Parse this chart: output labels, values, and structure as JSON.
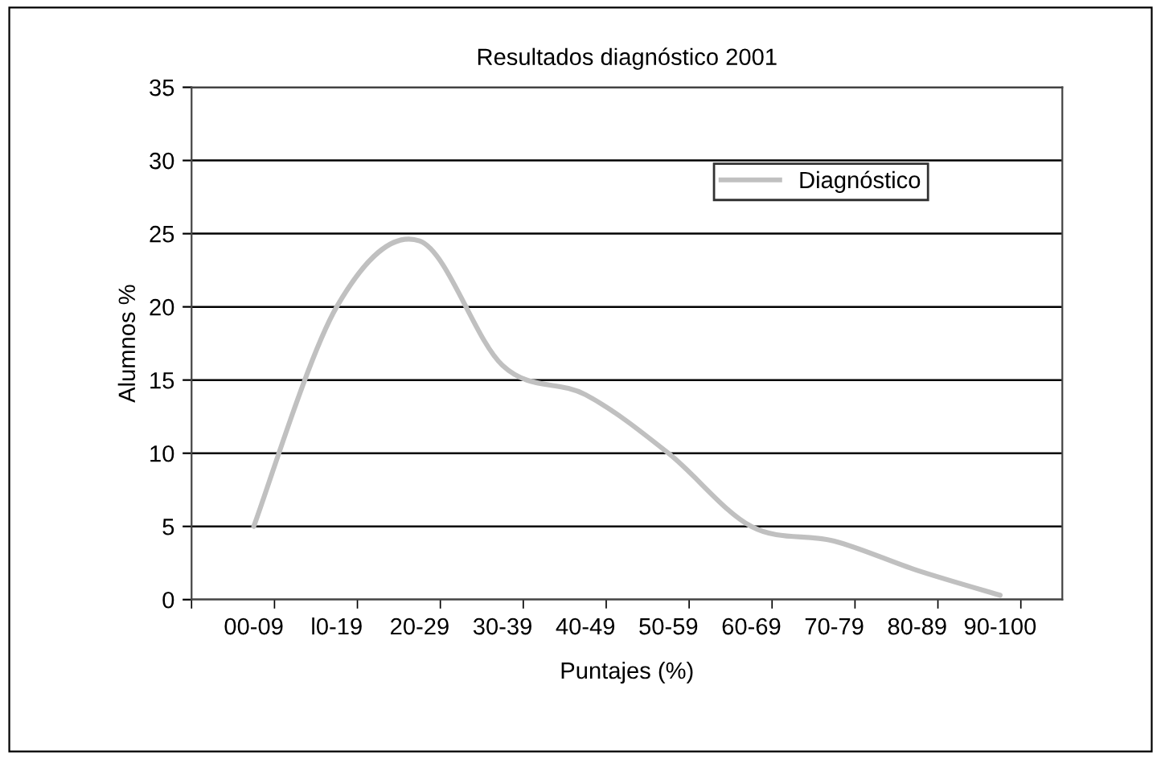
{
  "chart_data": {
    "type": "line",
    "title": "Resultados diagnóstico 2001",
    "xlabel": "Puntajes (%)",
    "ylabel": "Alumnos %",
    "categories": [
      "00-09",
      "l0-19",
      "20-29",
      "30-39",
      "40-49",
      "50-59",
      "60-69",
      "70-79",
      "80-89",
      "90-100"
    ],
    "series": [
      {
        "name": "Diagnóstico",
        "color": "#c0c0c0",
        "values": [
          5,
          20,
          24.5,
          16,
          14,
          10,
          5,
          4,
          2,
          0.3
        ]
      }
    ],
    "ylim": [
      0,
      35
    ],
    "yticks": [
      0,
      5,
      10,
      15,
      20,
      25,
      30,
      35
    ],
    "grid": "y",
    "legend": "top right",
    "marker": "none",
    "line_style": "solid"
  }
}
